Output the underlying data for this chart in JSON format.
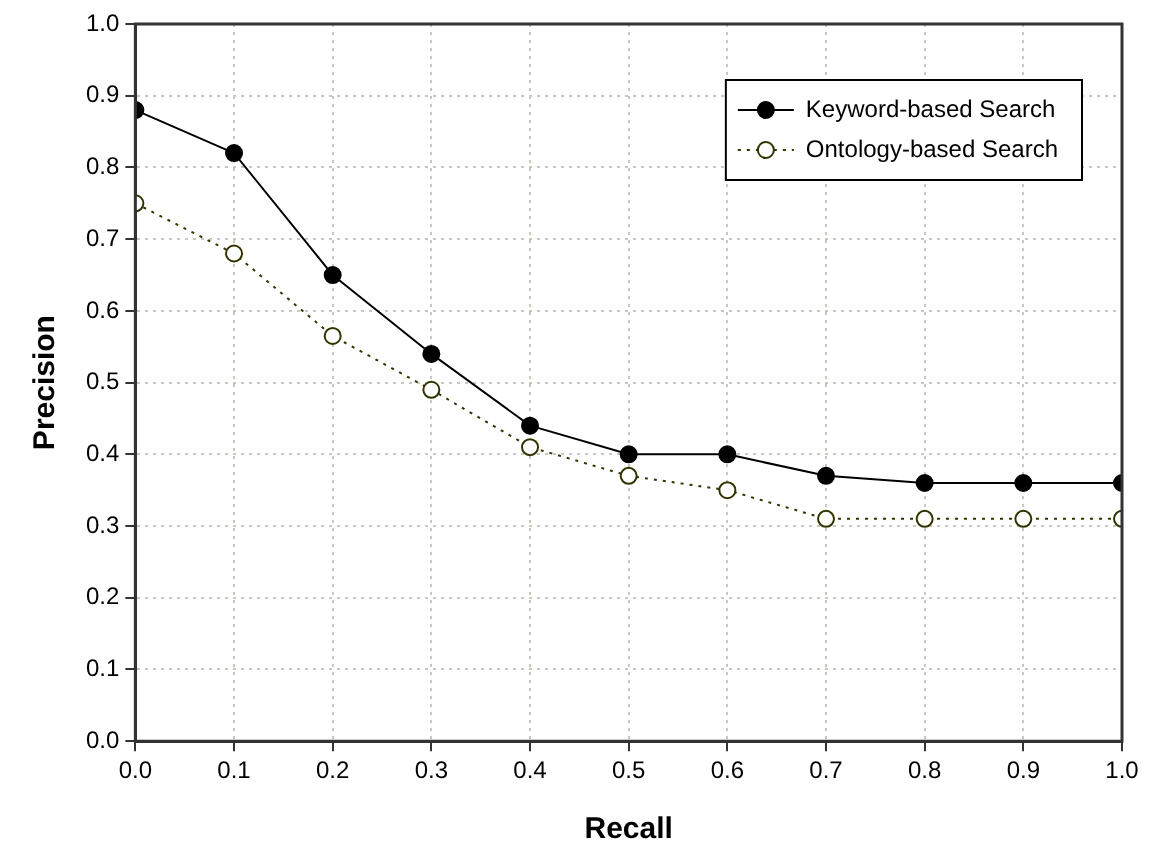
{
  "chart_data": {
    "type": "line",
    "xlabel": "Recall",
    "ylabel": "Precision",
    "x": [
      0,
      0.1,
      0.2,
      0.3,
      0.4,
      0.5,
      0.6,
      0.7,
      0.8,
      0.9,
      1.0
    ],
    "series": [
      {
        "name": "Keyword-based Search",
        "color": "#000000",
        "line_style": "solid",
        "values": [
          0.88,
          0.82,
          0.65,
          0.54,
          0.44,
          0.4,
          0.4,
          0.37,
          0.36,
          0.36,
          0.36
        ]
      },
      {
        "name": "Ontology-based Search",
        "color": "#333300",
        "line_style": "dotted",
        "values": [
          0.75,
          0.68,
          0.565,
          0.49,
          0.41,
          0.37,
          0.35,
          0.31,
          0.31,
          0.31,
          0.31
        ]
      }
    ],
    "xlim": [
      0,
      1
    ],
    "xticks": [
      {
        "value": 0,
        "label": "0.0"
      },
      {
        "value": 0.1,
        "label": "0.1"
      },
      {
        "value": 0.2,
        "label": "0.2"
      },
      {
        "value": 0.3,
        "label": "0.3"
      },
      {
        "value": 0.4,
        "label": "0.4"
      },
      {
        "value": 0.5,
        "label": "0.5"
      },
      {
        "value": 0.6,
        "label": "0.6"
      },
      {
        "value": 0.7,
        "label": "0.7"
      },
      {
        "value": 0.8,
        "label": "0.8"
      },
      {
        "value": 0.9,
        "label": "0.9"
      },
      {
        "value": 1,
        "label": "1.0"
      }
    ],
    "ylim": [
      0,
      1
    ],
    "yticks": [
      {
        "value": 0,
        "label": "0.0"
      },
      {
        "value": 0.1,
        "label": "0.1"
      },
      {
        "value": 0.2,
        "label": "0.2"
      },
      {
        "value": 0.3,
        "label": "0.3"
      },
      {
        "value": 0.4,
        "label": "0.4"
      },
      {
        "value": 0.5,
        "label": "0.5"
      },
      {
        "value": 0.6,
        "label": "0.6"
      },
      {
        "value": 0.7,
        "label": "0.7"
      },
      {
        "value": 0.8,
        "label": "0.8"
      },
      {
        "value": 0.9,
        "label": "0.9"
      },
      {
        "value": 1,
        "label": "1.0"
      }
    ],
    "grid": true,
    "legend": "top right",
    "marker": "circle"
  }
}
